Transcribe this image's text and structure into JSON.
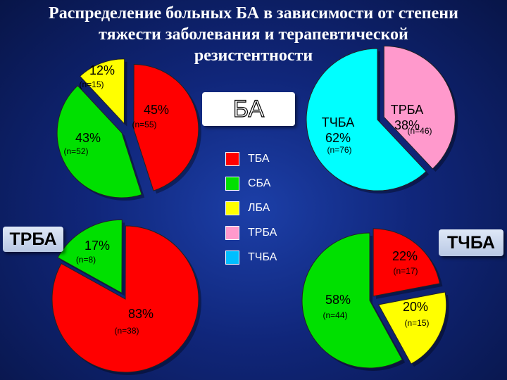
{
  "title_lines": [
    "Распределение больных БА в зависимости от степени",
    "тяжести заболевания и терапевтической",
    "резистентности"
  ],
  "ba_box_label": "БА",
  "panel_labels": {
    "trba": "ТРБА",
    "tchba": "ТЧБА"
  },
  "legend": [
    {
      "label": "ТБА",
      "color": "#ff0000"
    },
    {
      "label": "СБА",
      "color": "#00e000"
    },
    {
      "label": "ЛБА",
      "color": "#ffff00"
    },
    {
      "label": "ТРБА",
      "color": "#ff99cc"
    },
    {
      "label": "ТЧБА",
      "color": "#00bfff"
    }
  ],
  "chart_data": [
    {
      "type": "pie",
      "slices": [
        {
          "label": "12%",
          "n": "(n=15)",
          "value": 12,
          "color": "#ffff00"
        },
        {
          "label": "45%",
          "n": "(n=55)",
          "value": 45,
          "color": "#ff0000"
        },
        {
          "label": "43%",
          "n": "(n=52)",
          "value": 43,
          "color": "#00e000"
        }
      ]
    },
    {
      "type": "pie",
      "slices": [
        {
          "label": "ТРБА\n38%",
          "n": "(n=46)",
          "value": 38,
          "color": "#ff99cc"
        },
        {
          "label": "ТЧБА\n62%",
          "n": "(n=76)",
          "value": 62,
          "color": "#00ffff"
        }
      ]
    },
    {
      "type": "pie",
      "slices": [
        {
          "label": "17%",
          "n": "(n=8)",
          "value": 17,
          "color": "#00e000"
        },
        {
          "label": "83%",
          "n": "(n=38)",
          "value": 83,
          "color": "#ff0000"
        }
      ]
    },
    {
      "type": "pie",
      "slices": [
        {
          "label": "22%",
          "n": "(n=17)",
          "value": 22,
          "color": "#ff0000"
        },
        {
          "label": "20%",
          "n": "(n=15)",
          "value": 20,
          "color": "#ffff00"
        },
        {
          "label": "58%",
          "n": "(n=44)",
          "value": 58,
          "color": "#00e000"
        }
      ]
    }
  ]
}
